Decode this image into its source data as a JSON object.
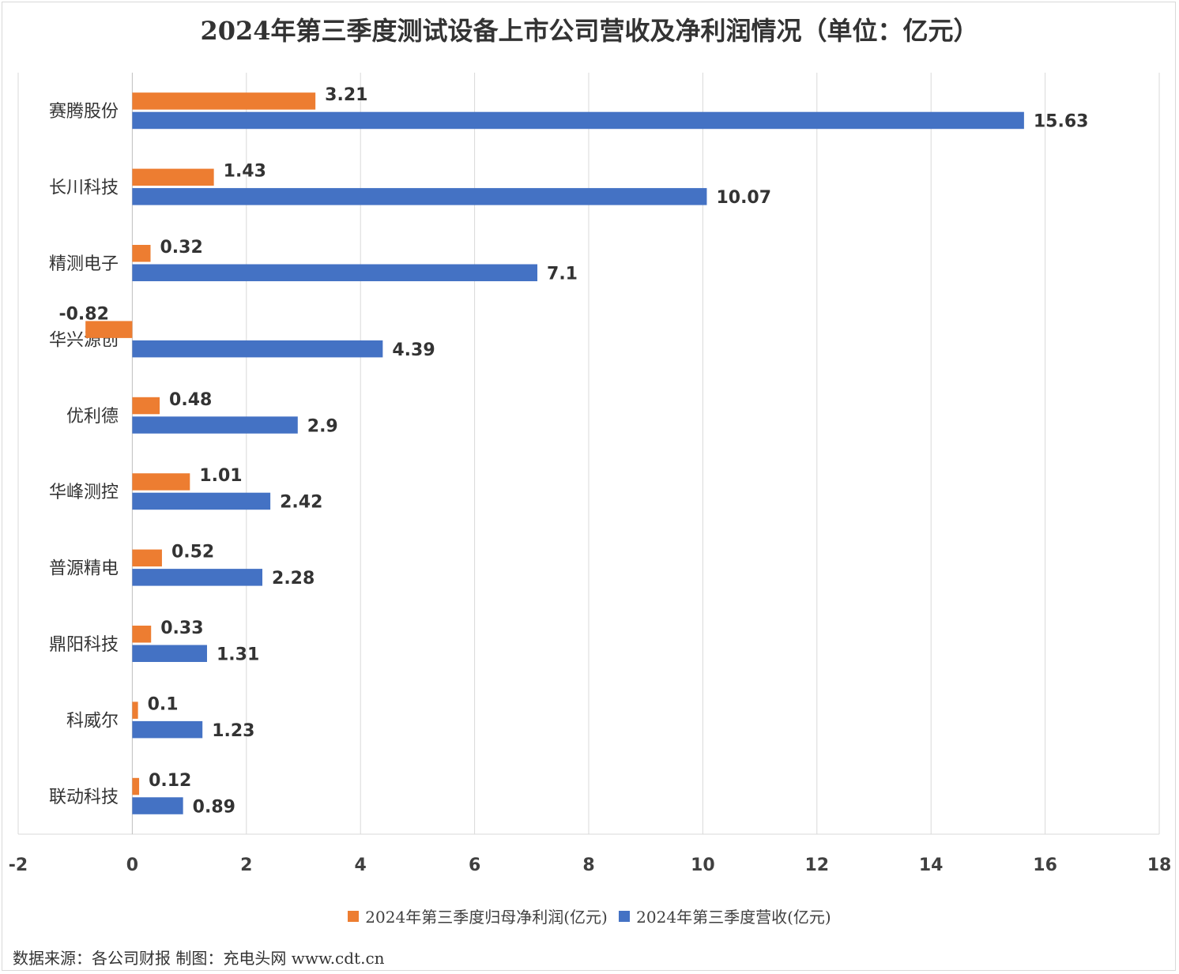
{
  "chart_data": {
    "type": "bar",
    "orientation": "horizontal",
    "title": "2024年第三季度测试设备上市公司营收及净利润情况（单位：亿元）",
    "categories": [
      "赛腾股份",
      "长川科技",
      "精测电子",
      "华兴源创",
      "优利德",
      "华峰测控",
      "普源精电",
      "鼎阳科技",
      "科威尔",
      "联动科技"
    ],
    "series": [
      {
        "name": "2024年第三季度归母净利润(亿元)",
        "color": "#ed7d31",
        "values": [
          3.21,
          1.43,
          0.32,
          -0.82,
          0.48,
          1.01,
          0.52,
          0.33,
          0.1,
          0.12
        ]
      },
      {
        "name": "2024年第三季度营收(亿元)",
        "color": "#4472c4",
        "values": [
          15.63,
          10.07,
          7.1,
          4.39,
          2.9,
          2.42,
          2.28,
          1.31,
          1.23,
          0.89
        ]
      }
    ],
    "xlim": [
      -2,
      18
    ],
    "xticks": [
      -2,
      0,
      2,
      4,
      6,
      8,
      10,
      12,
      14,
      16,
      18
    ],
    "xlabel": "",
    "ylabel": "",
    "grid": true,
    "legend": "bottom"
  },
  "source_note": "数据来源：各公司财报  制图：充电头网 www.cdt.cn"
}
